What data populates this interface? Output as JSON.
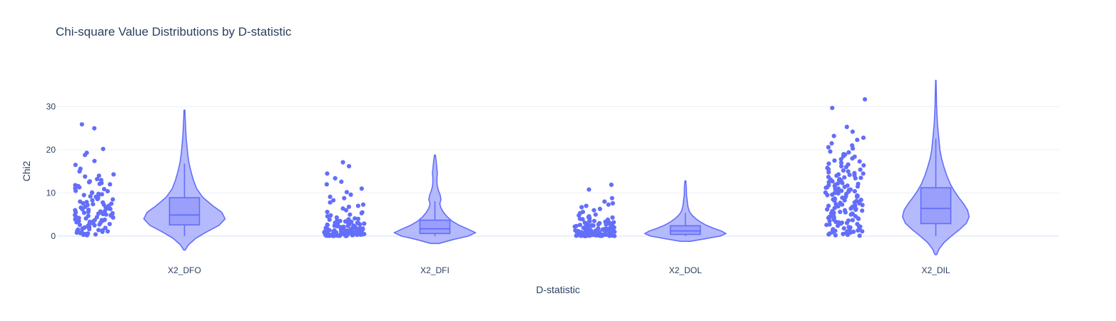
{
  "chart_data": {
    "type": "violin",
    "title": "Chi-square Value Distributions by D-statistic",
    "xlabel": "D-statistic",
    "ylabel": "Chi2",
    "ylim": [
      -5,
      38
    ],
    "yticks": [
      0,
      10,
      20,
      30
    ],
    "grid": true,
    "legend": "none",
    "colors": {
      "marker": "#636efa",
      "fill": "#a8aefc",
      "line": "#636efa",
      "text": "#2a3f5f",
      "grid": "#ebf0f8"
    },
    "categories": [
      {
        "label": "X2_DFO",
        "box": {
          "q1": 2.6,
          "median": 4.9,
          "q3": 8.9,
          "whisker_low": 0,
          "whisker_high": 16.8
        },
        "violin_span": [
          -3.2,
          29.2
        ],
        "density": [
          [
            -3.2,
            0.02
          ],
          [
            -2,
            0.1
          ],
          [
            -0.5,
            0.28
          ],
          [
            1,
            0.55
          ],
          [
            2.5,
            0.85
          ],
          [
            4,
            1.0
          ],
          [
            5.5,
            0.92
          ],
          [
            7,
            0.7
          ],
          [
            9,
            0.45
          ],
          [
            11,
            0.3
          ],
          [
            13,
            0.22
          ],
          [
            15,
            0.16
          ],
          [
            17,
            0.11
          ],
          [
            19,
            0.08
          ],
          [
            21,
            0.06
          ],
          [
            23,
            0.04
          ],
          [
            25,
            0.03
          ],
          [
            27,
            0.02
          ],
          [
            29.2,
            0.01
          ]
        ],
        "points": [
          0.3,
          0.5,
          0.6,
          0.8,
          1.0,
          1.1,
          1.2,
          1.3,
          1.5,
          1.7,
          1.9,
          2.0,
          2.2,
          2.4,
          2.5,
          2.7,
          2.9,
          3.0,
          3.1,
          3.3,
          3.5,
          3.6,
          3.8,
          3.9,
          4.1,
          4.2,
          4.4,
          4.5,
          4.7,
          4.8,
          5.0,
          5.1,
          5.3,
          5.5,
          5.6,
          5.8,
          6.0,
          6.2,
          6.4,
          6.6,
          6.8,
          7.0,
          7.3,
          7.5,
          7.8,
          8.0,
          8.3,
          8.6,
          8.9,
          9.2,
          9.5,
          9.8,
          10.1,
          10.5,
          10.9,
          11.3,
          11.8,
          12.3,
          12.7,
          13.2,
          13.8,
          14.3,
          15.0,
          15.6,
          16.5,
          17.4,
          18.8,
          19.3,
          20.2,
          25.0,
          25.9,
          0.4,
          0.9,
          1.4,
          2.1,
          2.6,
          3.2,
          3.7,
          4.3,
          4.9,
          5.4,
          6.1,
          6.7,
          7.2,
          7.9,
          8.5,
          9.1,
          9.7,
          10.4,
          11.1,
          12.1,
          12.5,
          0.7,
          1.6,
          2.8,
          3.4,
          4.6,
          5.2,
          6.3,
          7.6,
          8.8,
          10.0,
          11.6,
          13.0,
          0.2,
          1.8,
          3.7,
          5.7,
          7.4,
          9.4,
          12.0,
          14.0
        ],
        "point_seed": 11
      },
      {
        "label": "X2_DFI",
        "box": {
          "q1": 0.6,
          "median": 1.7,
          "q3": 3.7,
          "whisker_low": 0,
          "whisker_high": 8.1
        },
        "violin_span": [
          -1.7,
          18.8
        ],
        "density": [
          [
            -1.7,
            0.1
          ],
          [
            -0.8,
            0.45
          ],
          [
            0,
            0.82
          ],
          [
            0.8,
            1.0
          ],
          [
            1.6,
            0.82
          ],
          [
            2.5,
            0.6
          ],
          [
            3.5,
            0.42
          ],
          [
            4.5,
            0.3
          ],
          [
            5.5,
            0.21
          ],
          [
            6.5,
            0.15
          ],
          [
            7.5,
            0.12
          ],
          [
            8.5,
            0.15
          ],
          [
            9.5,
            0.13
          ],
          [
            10.5,
            0.09
          ],
          [
            11.5,
            0.06
          ],
          [
            12.5,
            0.05
          ],
          [
            13.5,
            0.05
          ],
          [
            14.5,
            0.06
          ],
          [
            15.5,
            0.05
          ],
          [
            16.5,
            0.04
          ],
          [
            17.5,
            0.03
          ],
          [
            18.8,
            0.01
          ]
        ],
        "points": [
          0.05,
          0.1,
          0.15,
          0.2,
          0.25,
          0.3,
          0.35,
          0.4,
          0.45,
          0.5,
          0.55,
          0.6,
          0.7,
          0.8,
          0.9,
          1.0,
          1.1,
          1.2,
          1.3,
          1.4,
          1.5,
          1.6,
          1.7,
          1.8,
          1.9,
          2.0,
          2.2,
          2.4,
          2.6,
          2.8,
          3.0,
          3.2,
          3.4,
          3.6,
          3.8,
          4.0,
          4.3,
          4.6,
          5.0,
          5.3,
          5.6,
          6.0,
          6.4,
          6.8,
          7.3,
          7.8,
          8.3,
          8.8,
          9.1,
          9.6,
          10.2,
          11.0,
          12.0,
          12.6,
          13.4,
          14.5,
          16.2,
          17.1,
          0.08,
          0.12,
          0.18,
          0.22,
          0.28,
          0.32,
          0.38,
          0.42,
          0.48,
          0.52,
          0.65,
          0.75,
          0.85,
          0.95,
          1.05,
          1.15,
          1.25,
          1.35,
          1.45,
          1.55,
          1.65,
          1.75,
          2.1,
          2.3,
          2.5,
          2.7,
          2.9,
          3.1,
          3.3,
          0.02,
          0.06,
          0.14,
          0.24,
          0.34,
          0.44,
          0.58,
          0.68,
          0.78,
          0.88,
          0.98,
          1.08,
          1.22,
          1.38,
          1.58,
          1.88,
          2.15,
          2.45,
          2.75,
          3.5,
          3.9,
          4.8,
          0.03,
          0.09,
          0.16,
          0.26,
          0.36,
          0.46,
          0.62,
          0.72,
          0.82,
          0.92,
          1.02,
          1.12,
          1.32,
          1.52,
          1.72,
          1.95,
          2.35,
          2.65,
          3.05,
          4.1,
          5.5,
          7.0
        ],
        "point_seed": 23
      },
      {
        "label": "X2_DOL",
        "box": {
          "q1": 0.4,
          "median": 1.2,
          "q3": 2.4,
          "whisker_low": 0,
          "whisker_high": 5.4
        },
        "violin_span": [
          -1.2,
          12.8
        ],
        "density": [
          [
            -1.2,
            0.12
          ],
          [
            -0.6,
            0.5
          ],
          [
            0,
            0.85
          ],
          [
            0.6,
            1.0
          ],
          [
            1.2,
            0.88
          ],
          [
            1.8,
            0.7
          ],
          [
            2.5,
            0.52
          ],
          [
            3.2,
            0.38
          ],
          [
            4.0,
            0.26
          ],
          [
            4.8,
            0.17
          ],
          [
            5.5,
            0.11
          ],
          [
            6.2,
            0.08
          ],
          [
            7.0,
            0.06
          ],
          [
            7.8,
            0.05
          ],
          [
            8.6,
            0.04
          ],
          [
            9.4,
            0.03
          ],
          [
            10.2,
            0.025
          ],
          [
            11.0,
            0.025
          ],
          [
            11.8,
            0.02
          ],
          [
            12.8,
            0.01
          ]
        ],
        "points": [
          0.02,
          0.05,
          0.08,
          0.1,
          0.12,
          0.15,
          0.18,
          0.2,
          0.22,
          0.25,
          0.28,
          0.3,
          0.33,
          0.36,
          0.4,
          0.44,
          0.48,
          0.52,
          0.56,
          0.6,
          0.65,
          0.7,
          0.75,
          0.8,
          0.85,
          0.9,
          0.95,
          1.0,
          1.05,
          1.1,
          1.15,
          1.2,
          1.3,
          1.4,
          1.5,
          1.6,
          1.7,
          1.8,
          1.9,
          2.0,
          2.1,
          2.2,
          2.3,
          2.4,
          2.5,
          2.6,
          2.7,
          2.8,
          2.9,
          3.0,
          3.1,
          3.2,
          3.3,
          3.4,
          3.6,
          3.8,
          4.0,
          4.2,
          4.4,
          4.6,
          4.8,
          5.0,
          5.3,
          5.6,
          6.0,
          6.3,
          6.7,
          7.0,
          7.3,
          7.6,
          8.0,
          8.8,
          10.8,
          11.9,
          0.03,
          0.06,
          0.09,
          0.13,
          0.16,
          0.19,
          0.23,
          0.26,
          0.29,
          0.34,
          0.38,
          0.42,
          0.46,
          0.5,
          0.55,
          0.62,
          0.68,
          0.73,
          0.78,
          0.83,
          0.88,
          0.93,
          0.98,
          1.08,
          1.18,
          1.28,
          1.38,
          1.48,
          1.58,
          1.68,
          1.78,
          1.95,
          2.15,
          2.35,
          2.55,
          2.75,
          2.95,
          3.15,
          3.5,
          3.9,
          4.3,
          0.04,
          0.07,
          0.11,
          0.14,
          0.17,
          0.21,
          0.24,
          0.27,
          0.31,
          0.35,
          0.45,
          0.58,
          0.72,
          0.86,
          1.02,
          1.22,
          1.45,
          1.72,
          2.05,
          2.45
        ],
        "point_seed": 37
      },
      {
        "label": "X2_DIL",
        "box": {
          "q1": 2.9,
          "median": 6.4,
          "q3": 11.2,
          "whisker_low": 0,
          "whisker_high": 22.6
        },
        "violin_span": [
          -4.3,
          36.1
        ],
        "density": [
          [
            -4.3,
            0.02
          ],
          [
            -3,
            0.08
          ],
          [
            -1.5,
            0.2
          ],
          [
            0,
            0.38
          ],
          [
            1.5,
            0.58
          ],
          [
            3,
            0.75
          ],
          [
            4.5,
            0.82
          ],
          [
            6,
            0.78
          ],
          [
            7.5,
            0.68
          ],
          [
            9,
            0.56
          ],
          [
            10.5,
            0.45
          ],
          [
            12,
            0.36
          ],
          [
            14,
            0.27
          ],
          [
            16,
            0.2
          ],
          [
            18,
            0.14
          ],
          [
            20,
            0.1
          ],
          [
            22,
            0.08
          ],
          [
            24,
            0.06
          ],
          [
            26,
            0.04
          ],
          [
            28,
            0.03
          ],
          [
            30,
            0.02
          ],
          [
            32,
            0.015
          ],
          [
            34,
            0.01
          ],
          [
            36.1,
            0.005
          ]
        ],
        "points": [
          0.2,
          0.4,
          0.6,
          0.8,
          1.0,
          1.2,
          1.4,
          1.6,
          1.8,
          2.0,
          2.3,
          2.6,
          2.9,
          3.2,
          3.5,
          3.8,
          4.1,
          4.4,
          4.7,
          5.0,
          5.3,
          5.6,
          5.9,
          6.2,
          6.5,
          6.8,
          7.1,
          7.4,
          7.7,
          8.0,
          8.3,
          8.6,
          8.9,
          9.2,
          9.5,
          9.8,
          10.1,
          10.4,
          10.7,
          11.0,
          11.3,
          11.6,
          11.9,
          12.2,
          12.5,
          12.8,
          13.1,
          13.4,
          13.7,
          14.0,
          14.3,
          14.6,
          15.0,
          15.4,
          15.8,
          16.2,
          16.6,
          17.0,
          17.5,
          18.0,
          18.5,
          19.0,
          19.6,
          20.3,
          21.0,
          21.5,
          22.3,
          22.8,
          23.2,
          24.2,
          25.3,
          29.7,
          31.7,
          0.3,
          0.7,
          1.1,
          1.5,
          1.9,
          2.4,
          2.8,
          3.3,
          3.7,
          4.2,
          4.6,
          5.1,
          5.5,
          6.0,
          6.4,
          6.9,
          7.3,
          7.8,
          8.2,
          8.7,
          9.1,
          9.6,
          10.0,
          10.5,
          10.9,
          11.4,
          11.8,
          12.3,
          12.7,
          13.2,
          13.6,
          14.1,
          14.8,
          15.5,
          16.4,
          17.3,
          18.4,
          19.4,
          20.6,
          0.5,
          0.9,
          1.3,
          1.7,
          2.2,
          2.7,
          3.1,
          3.6,
          4.0,
          4.5,
          4.9,
          5.4,
          5.8,
          6.3,
          6.7,
          7.2,
          7.6,
          8.1,
          8.5,
          9.0,
          9.4,
          9.9,
          10.3,
          10.8,
          11.2,
          11.7,
          12.1,
          12.6,
          13.0,
          13.5,
          14.2,
          15.2,
          16.0,
          17.8,
          0.1,
          1.05,
          2.1,
          3.05,
          4.3,
          5.2,
          6.1,
          7.0,
          8.4,
          9.3,
          10.2,
          11.5,
          12.9,
          14.5,
          16.8,
          18.9
        ],
        "point_seed": 53
      }
    ]
  }
}
